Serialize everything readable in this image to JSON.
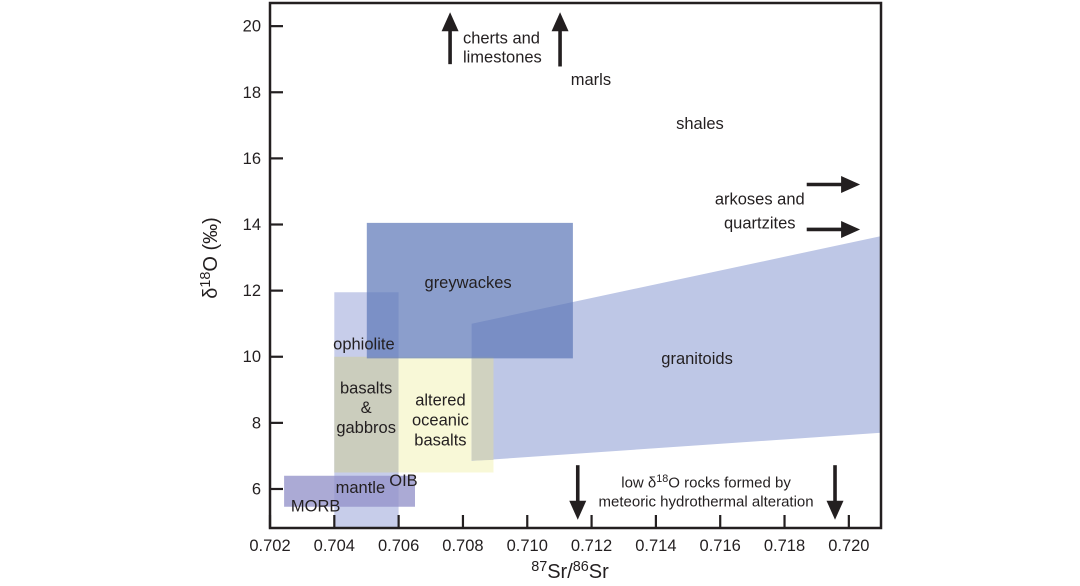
{
  "figure": {
    "title": "Sr-O isotope fields of rock types",
    "background": "#ffffff",
    "ink_color": "#231f20"
  },
  "chart_data": {
    "type": "area",
    "title": "",
    "xlabel": "^87^Sr/^86^Sr",
    "ylabel": "δ^18^O (‰)",
    "xlim": [
      0.702,
      0.721
    ],
    "ylim": [
      4.82,
      20.7
    ],
    "grid": false,
    "legend": "none",
    "x_tick_values": [
      0.702,
      0.704,
      0.706,
      0.708,
      0.71,
      0.712,
      0.714,
      0.716,
      0.718,
      0.72
    ],
    "x_tick_labels": [
      "0.702",
      "0.704",
      "0.706",
      "0.708",
      "0.710",
      "0.712",
      "0.714",
      "0.716",
      "0.718",
      "0.720"
    ],
    "y_tick_values": [
      6,
      8,
      10,
      12,
      14,
      16,
      18,
      20
    ],
    "y_tick_labels": [
      "6",
      "8",
      "10",
      "12",
      "14",
      "16",
      "18",
      "20"
    ],
    "regions": [
      {
        "id": "ophiolite",
        "label": "ophiolite",
        "fill": "#c7cdea",
        "opacity": 1,
        "points": [
          [
            0.704,
            4.82
          ],
          [
            0.704,
            11.95
          ],
          [
            0.706,
            11.95
          ],
          [
            0.706,
            4.82
          ]
        ]
      },
      {
        "id": "basalts-gabbros",
        "label": "basalts & gabbros",
        "fill": "#cbcdbd",
        "opacity": 1,
        "points": [
          [
            0.704,
            6.5
          ],
          [
            0.704,
            10
          ],
          [
            0.706,
            10
          ],
          [
            0.706,
            6.5
          ]
        ]
      },
      {
        "id": "altered-oceanic-basalts",
        "label": "altered oceanic basalts",
        "fill": "#f8f8d7",
        "opacity": 1,
        "points": [
          [
            0.706,
            6.5
          ],
          [
            0.706,
            10
          ],
          [
            0.70895,
            10
          ],
          [
            0.70895,
            6.5
          ]
        ]
      },
      {
        "id": "granitoids",
        "label": "granitoids",
        "fill": "#bec7e6",
        "opacity": 1,
        "points": [
          [
            0.70827,
            6.85
          ],
          [
            0.70827,
            11.0
          ],
          [
            0.721,
            13.65
          ],
          [
            0.721,
            7.7
          ]
        ]
      },
      {
        "id": "granitoids-altered-overlap",
        "label": "",
        "fill": "#d0d2c0",
        "opacity": 1,
        "points": [
          [
            0.70827,
            6.86
          ],
          [
            0.70827,
            10
          ],
          [
            0.70895,
            10
          ],
          [
            0.70895,
            6.88
          ]
        ]
      },
      {
        "id": "greywackes",
        "label": "greywackes",
        "fill": "#5e78b8",
        "opacity": 0.72,
        "points": [
          [
            0.70501,
            9.95
          ],
          [
            0.70501,
            14.05
          ],
          [
            0.71142,
            14.05
          ],
          [
            0.71142,
            9.95
          ]
        ]
      },
      {
        "id": "mantle",
        "label": "mantle",
        "fill": "#9492c9",
        "opacity": 0.78,
        "points": [
          [
            0.70244,
            5.46
          ],
          [
            0.70244,
            6.4
          ],
          [
            0.70651,
            6.4
          ],
          [
            0.70651,
            5.46
          ]
        ]
      }
    ],
    "labels": [
      {
        "id": "cherts-limestones",
        "lines": [
          "cherts and",
          "limestones"
        ],
        "x": 0.708,
        "y": 19.65,
        "size": 16.5,
        "lh": 1.15,
        "anchor": "start"
      },
      {
        "id": "marls",
        "lines": [
          "marls"
        ],
        "x": 0.71198,
        "y": 18.4,
        "size": 16.5,
        "anchor": "middle"
      },
      {
        "id": "shales",
        "lines": [
          "shales"
        ],
        "x": 0.71537,
        "y": 17.07,
        "size": 16.5,
        "anchor": "middle"
      },
      {
        "id": "arkoses-quartzites",
        "lines": [
          "arkoses and",
          "quartzites"
        ],
        "x": 0.71723,
        "y": 14.78,
        "size": 16.5,
        "lh": 1.45,
        "anchor": "middle"
      },
      {
        "id": "greywackes",
        "lines": [
          "greywackes"
        ],
        "x": 0.70816,
        "y": 12.26,
        "size": 16.5,
        "anchor": "middle"
      },
      {
        "id": "ophiolite",
        "lines": [
          "ophiolite"
        ],
        "x": 0.70492,
        "y": 10.4,
        "size": 16.5,
        "anchor": "middle"
      },
      {
        "id": "basalts-gabbros",
        "lines": [
          "basalts",
          "&",
          "gabbros"
        ],
        "x": 0.70499,
        "y": 9.07,
        "size": 16.5,
        "lh": 1.21,
        "anchor": "middle"
      },
      {
        "id": "altered-oceanic-basalts",
        "lines": [
          "altered",
          "oceanic",
          "basalts"
        ],
        "x": 0.7073,
        "y": 8.7,
        "size": 16.5,
        "lh": 1.21,
        "anchor": "middle"
      },
      {
        "id": "granitoids",
        "lines": [
          "granitoids"
        ],
        "x": 0.71528,
        "y": 9.95,
        "size": 16.5,
        "anchor": "middle"
      },
      {
        "id": "mantle",
        "lines": [
          "mantle"
        ],
        "x": 0.70481,
        "y": 6.05,
        "size": 16.5,
        "anchor": "middle"
      },
      {
        "id": "oib",
        "lines": [
          "OIB"
        ],
        "x": 0.70615,
        "y": 6.27,
        "size": 16.5,
        "anchor": "middle"
      },
      {
        "id": "morb",
        "lines": [
          "MORB"
        ],
        "x": 0.70342,
        "y": 5.5,
        "size": 16.5,
        "anchor": "middle"
      },
      {
        "id": "low-d18o-note",
        "lines": [
          "low δ^18^O rocks formed by",
          "meteoric hydrothermal alteration"
        ],
        "x": 0.71556,
        "y": 6.2,
        "size": 15,
        "lh": 1.27,
        "anchor": "middle"
      }
    ],
    "arrows": [
      {
        "id": "cherts-up-arrow",
        "x1": 0.7076,
        "y1": 18.85,
        "x2": 0.7076,
        "y2": 20.42
      },
      {
        "id": "marls-up-arrow",
        "x1": 0.71102,
        "y1": 18.78,
        "x2": 0.71102,
        "y2": 20.42
      },
      {
        "id": "arkoses-right-arrow-upper",
        "x1": 0.71869,
        "y1": 15.21,
        "x2": 0.72035,
        "y2": 15.21
      },
      {
        "id": "arkoses-right-arrow-lower",
        "x1": 0.71869,
        "y1": 13.85,
        "x2": 0.72035,
        "y2": 13.85
      },
      {
        "id": "meteoric-down-arrow-left",
        "x1": 0.71157,
        "y1": 6.72,
        "x2": 0.71157,
        "y2": 5.07
      },
      {
        "id": "meteoric-down-arrow-right",
        "x1": 0.71957,
        "y1": 6.72,
        "x2": 0.71957,
        "y2": 5.07
      }
    ]
  }
}
